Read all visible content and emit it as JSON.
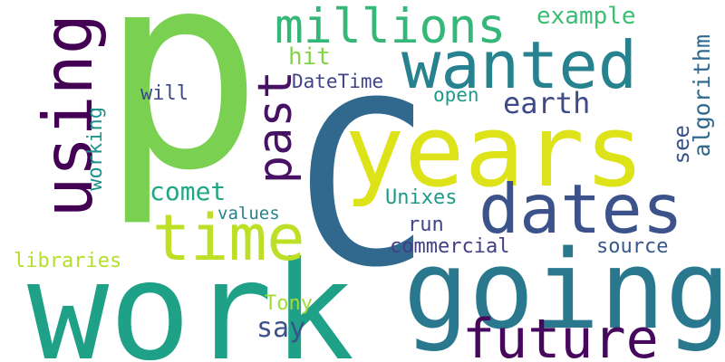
{
  "words": [
    {
      "text": "p",
      "color": "#7ad151",
      "rotation": 0
    },
    {
      "text": "C",
      "color": "#31688e",
      "rotation": 0
    },
    {
      "text": "years",
      "color": "#dde318",
      "rotation": 0
    },
    {
      "text": "work",
      "color": "#1fa187",
      "rotation": 0
    },
    {
      "text": "going",
      "color": "#2a788e",
      "rotation": 0
    },
    {
      "text": "wanted",
      "color": "#26828e",
      "rotation": 0
    },
    {
      "text": "using",
      "color": "#440154",
      "rotation": 90
    },
    {
      "text": "dates",
      "color": "#3b528b",
      "rotation": 0
    },
    {
      "text": "time",
      "color": "#bddf26",
      "rotation": 0
    },
    {
      "text": "future",
      "color": "#46085c",
      "rotation": 0
    },
    {
      "text": "millions",
      "color": "#35b779",
      "rotation": 0
    },
    {
      "text": "past",
      "color": "#471164",
      "rotation": 90
    },
    {
      "text": "example",
      "color": "#3dbc74",
      "rotation": 0
    },
    {
      "text": "algorithm",
      "color": "#31688e",
      "rotation": 90
    },
    {
      "text": "earth",
      "color": "#3e4a89",
      "rotation": 0
    },
    {
      "text": "see",
      "color": "#3b528b",
      "rotation": 90
    },
    {
      "text": "hit",
      "color": "#84d44b",
      "rotation": 0
    },
    {
      "text": "DateTime",
      "color": "#414487",
      "rotation": 0
    },
    {
      "text": "open",
      "color": "#1f9a8a",
      "rotation": 0
    },
    {
      "text": "will",
      "color": "#3e4a89",
      "rotation": 0
    },
    {
      "text": "working",
      "color": "#20928c",
      "rotation": 90
    },
    {
      "text": "comet",
      "color": "#22a785",
      "rotation": 0
    },
    {
      "text": "Unixes",
      "color": "#1f9a8a",
      "rotation": 0
    },
    {
      "text": "values",
      "color": "#26828e",
      "rotation": 0
    },
    {
      "text": "run",
      "color": "#404688",
      "rotation": 0
    },
    {
      "text": "commercial",
      "color": "#433e85",
      "rotation": 0
    },
    {
      "text": "source",
      "color": "#38588c",
      "rotation": 0
    },
    {
      "text": "libraries",
      "color": "#b5de2b",
      "rotation": 0
    },
    {
      "text": "Tony",
      "color": "#a5db36",
      "rotation": 0
    },
    {
      "text": "say",
      "color": "#3b528b",
      "rotation": 0
    }
  ]
}
